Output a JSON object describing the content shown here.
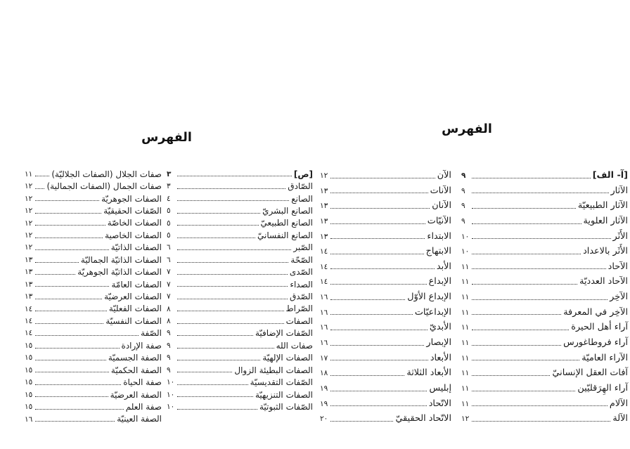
{
  "document": {
    "kind": "book-index-spread",
    "language": "Arabic"
  },
  "colors": {
    "text": "#1c1c1c",
    "background": "#ffffff",
    "leader_dots": "#2e2e2e"
  },
  "pages": [
    {
      "id": "left-page",
      "title": "الفهرس",
      "columns": [
        {
          "side": "right",
          "entries": [
            {
              "t": "[ص]",
              "n": "٣",
              "bold": true
            },
            {
              "t": "الصّادق",
              "n": "٣"
            },
            {
              "t": "الصانع",
              "n": "٤"
            },
            {
              "t": "الصانع البشريّ",
              "n": "٥"
            },
            {
              "t": "الصانع الطبيعيّ",
              "n": "٥"
            },
            {
              "t": "الصانع النفسانيّ",
              "n": "٥"
            },
            {
              "t": "الصّبر",
              "n": "٦"
            },
            {
              "t": "الصّحّة",
              "n": "٦"
            },
            {
              "t": "الصّدى",
              "n": "٧"
            },
            {
              "t": "الصداء",
              "n": "٧"
            },
            {
              "t": "الصّدق",
              "n": "٧"
            },
            {
              "t": "الصّراط",
              "n": "٨"
            },
            {
              "t": "الصفات",
              "n": "٨"
            },
            {
              "t": "الصّفات الإضافيّة",
              "n": "٩"
            },
            {
              "t": "صفات الله",
              "n": "٩"
            },
            {
              "t": "الصفات الإلهيّة",
              "n": "٩"
            },
            {
              "t": "الصفات البطيئة الزوال",
              "n": "٩"
            },
            {
              "t": "الصّفات التقديسيّة",
              "n": "١٠"
            },
            {
              "t": "الصفات التنزيهيّة",
              "n": "١٠"
            },
            {
              "t": "الصّفات الثبوتيّة",
              "n": "١٠"
            }
          ]
        },
        {
          "side": "left",
          "entries": [
            {
              "t": "صفات الجلال (الصفات الجلاليّة)",
              "n": "١١"
            },
            {
              "t": "صفات الجمال (الصفات الجمالية)",
              "n": "١٢"
            },
            {
              "t": "الصفات الجوهريّة",
              "n": "١٢"
            },
            {
              "t": "الصّفات الحقيقيّة",
              "n": "١٢"
            },
            {
              "t": "الصفات الخاصّة",
              "n": "١٢"
            },
            {
              "t": "الصفات الخاصية",
              "n": "١٢"
            },
            {
              "t": "الصفات الذاتيّة",
              "n": "١٢"
            },
            {
              "t": "الصفات الذاتيّة الجماليّة",
              "n": "١٣"
            },
            {
              "t": "الصفات الذاتيّة الجوهريّة",
              "n": "١٣"
            },
            {
              "t": "الصفات العامّة",
              "n": "١٣"
            },
            {
              "t": "الصفات العرضيّة",
              "n": "١٣"
            },
            {
              "t": "الصفات الفعليّة",
              "n": "١٤"
            },
            {
              "t": "الصفات النفسيّة",
              "n": "١٤"
            },
            {
              "t": "الصّفة",
              "n": "١٤"
            },
            {
              "t": "صفة الإرادة",
              "n": "١٥"
            },
            {
              "t": "الصفة الجسميّة",
              "n": "١٥"
            },
            {
              "t": "الصفة الحكميّة",
              "n": "١٥"
            },
            {
              "t": "صفة الحياة",
              "n": "١٥"
            },
            {
              "t": "الصفة العرضيّة",
              "n": "١٥"
            },
            {
              "t": "صفة العلم",
              "n": "١٥"
            },
            {
              "t": "الصفة العينيّة",
              "n": "١٦"
            }
          ]
        }
      ]
    },
    {
      "id": "right-page",
      "title": "الفهرس",
      "columns": [
        {
          "side": "right",
          "entries": [
            {
              "t": "[آ- الف]",
              "n": "٩",
              "bold": true
            },
            {
              "t": "الآثار",
              "n": "٩"
            },
            {
              "t": "الآثار الطبيعيّة",
              "n": "٩"
            },
            {
              "t": "الآثار العلوية",
              "n": "٩"
            },
            {
              "t": "الأَثَر",
              "n": "١٠"
            },
            {
              "t": "الأَثَر بالاعداد",
              "n": "١٠"
            },
            {
              "t": "الآحاد",
              "n": "١١"
            },
            {
              "t": "الآحاد العدديّة",
              "n": "١١"
            },
            {
              "t": "الآخِر",
              "n": "١١"
            },
            {
              "t": "الآخِر في المعرفة",
              "n": "١١"
            },
            {
              "t": "آراء أهل الحيرة",
              "n": "١١"
            },
            {
              "t": "آراء فروطاغورس",
              "n": "١١"
            },
            {
              "t": "الآراء العاميّة",
              "n": "١١"
            },
            {
              "t": "آفات العقل الإنسانيّ",
              "n": "١١"
            },
            {
              "t": "آراء الهِرَقليّين",
              "n": "١١"
            },
            {
              "t": "الآلام",
              "n": "١١"
            },
            {
              "t": "الآلة",
              "n": "١٢"
            }
          ]
        },
        {
          "side": "left",
          "entries": [
            {
              "t": "الآن",
              "n": "١٢"
            },
            {
              "t": "الآنات",
              "n": "١٣"
            },
            {
              "t": "الآنان",
              "n": "١٣"
            },
            {
              "t": "الآنيّات",
              "n": "١٣"
            },
            {
              "t": "الابتداء",
              "n": "١٣"
            },
            {
              "t": "الابتهاج",
              "n": "١٤"
            },
            {
              "t": "الأبد",
              "n": "١٤"
            },
            {
              "t": "الإبداع",
              "n": "١٤"
            },
            {
              "t": "الإبداع الأوّل",
              "n": "١٦"
            },
            {
              "t": "الإبداعيّات",
              "n": "١٦"
            },
            {
              "t": "الأبديّ",
              "n": "١٦"
            },
            {
              "t": "الإبصار",
              "n": "١٦"
            },
            {
              "t": "الأبعاد",
              "n": "١٧"
            },
            {
              "t": "الأبعاد الثلاثة",
              "n": "١٨"
            },
            {
              "t": "إبليس",
              "n": "١٩"
            },
            {
              "t": "الاتّحاد",
              "n": "١٩"
            },
            {
              "t": "الاتّحاد الحقيقيّ",
              "n": "٢٠"
            }
          ]
        }
      ]
    }
  ]
}
